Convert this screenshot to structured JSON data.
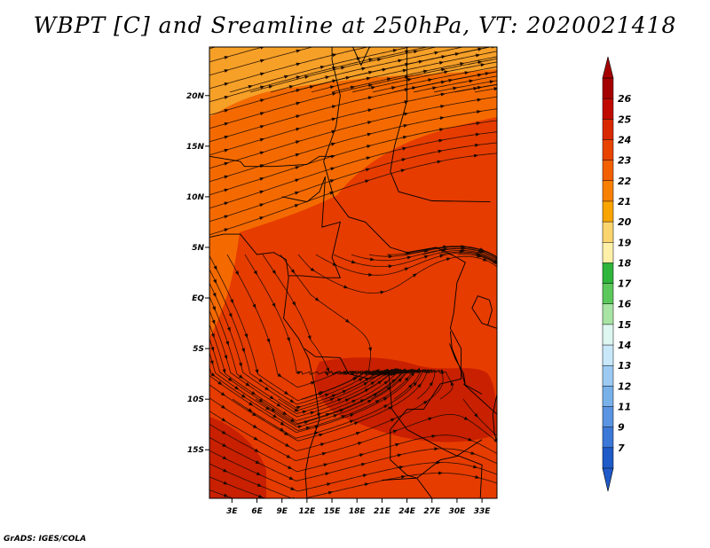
{
  "title": "WBPT [C] and Sreamline at 250hPa, VT: 2020021418",
  "footer": "GrADS: IGES/COLA",
  "map": {
    "lat_labels": [
      "20N",
      "15N",
      "10N",
      "5N",
      "EQ",
      "5S",
      "10S",
      "15S"
    ],
    "lon_labels": [
      "3E",
      "6E",
      "9E",
      "12E",
      "15E",
      "18E",
      "21E",
      "24E",
      "27E",
      "30E",
      "33E"
    ],
    "lat_values": [
      20,
      15,
      10,
      5,
      0,
      -5,
      -10,
      -15
    ],
    "lon_values": [
      3,
      6,
      9,
      12,
      15,
      18,
      21,
      24,
      27,
      30,
      33
    ],
    "lat_range": [
      -19.8,
      24.8
    ],
    "lon_range": [
      0.3,
      34.8
    ]
  },
  "colorbar": {
    "labels": [
      "26",
      "25",
      "24",
      "23",
      "22",
      "21",
      "20",
      "19",
      "18",
      "17",
      "16",
      "15",
      "14",
      "13",
      "12",
      "11",
      "9",
      "7"
    ],
    "colors": [
      "#a50000",
      "#c00a00",
      "#d92800",
      "#e84400",
      "#f26000",
      "#f88000",
      "#faa400",
      "#fcd46e",
      "#fff0a8",
      "#2fb43c",
      "#5cc85c",
      "#a8e4a4",
      "#def6f0",
      "#c8e8fa",
      "#9ccaf2",
      "#78b0ea",
      "#5a94e2",
      "#3c78d8",
      "#1e5ac8"
    ]
  },
  "colors": {
    "field_base": "#e63c00",
    "warm_core": "#c82000",
    "north_light": "#f6a028",
    "orange": "#f46a00"
  }
}
